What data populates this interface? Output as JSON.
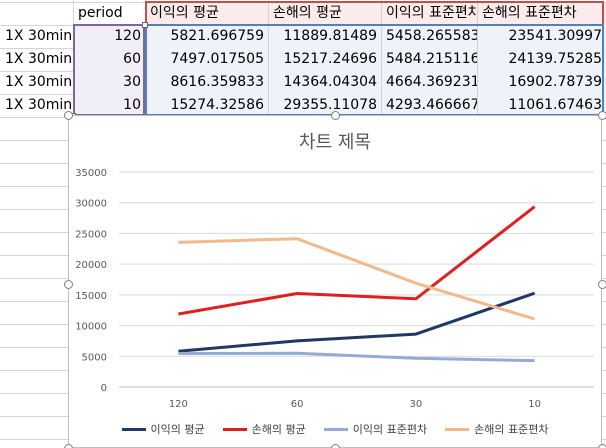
{
  "sheet": {
    "headers": [
      "",
      "period",
      "이익의 평균",
      "손해의 평균",
      "이익의 표준편차",
      "손해의 표준편차"
    ],
    "rows": [
      {
        "label": "1X 30min",
        "period": "120",
        "gain_avg": "5821.696759",
        "loss_avg": "11889.81489",
        "gain_std": "5458.265583",
        "loss_std": "23541.30997"
      },
      {
        "label": "1X 30min",
        "period": "60",
        "gain_avg": "7497.017505",
        "loss_avg": "15217.24696",
        "gain_std": "5484.215116",
        "loss_std": "24139.75285"
      },
      {
        "label": "1X 30min",
        "period": "30",
        "gain_avg": "8616.359833",
        "loss_avg": "14364.04304",
        "gain_std": "4664.369231",
        "loss_std": "16902.78739"
      },
      {
        "label": "1X 30min",
        "period": "10",
        "gain_avg": "15274.32586",
        "loss_avg": "29355.11078",
        "gain_std": "4293.466667",
        "loss_std": "11061.67463"
      }
    ]
  },
  "chart_data": {
    "type": "line",
    "title": "차트 제목",
    "categories": [
      "120",
      "60",
      "30",
      "10"
    ],
    "xlabel": "",
    "ylabel": "",
    "ylim": [
      0,
      35000
    ],
    "yticks": [
      "0",
      "5000",
      "10000",
      "15000",
      "20000",
      "25000",
      "30000",
      "35000"
    ],
    "grid": true,
    "legend_position": "bottom",
    "series": [
      {
        "name": "이익의 평균",
        "color": "#1f3864",
        "values": [
          5821.696759,
          7497.017505,
          8616.359833,
          15274.32586
        ]
      },
      {
        "name": "손해의 평균",
        "color": "#e02020",
        "values": [
          11889.81489,
          15217.24696,
          14364.04304,
          29355.11078
        ]
      },
      {
        "name": "이익의 표준편차",
        "color": "#94acd2",
        "values": [
          5458.265583,
          5484.215116,
          4664.369231,
          4293.466667
        ]
      },
      {
        "name": "손해의 표준편차",
        "color": "#f2b98a",
        "values": [
          23541.30997,
          24139.75285,
          16902.78739,
          11061.67463
        ]
      }
    ]
  }
}
